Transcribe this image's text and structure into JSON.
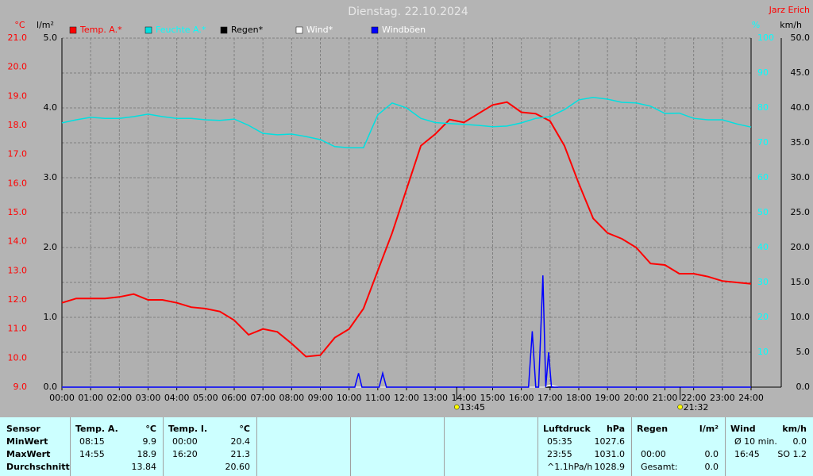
{
  "chart_data": {
    "type": "line",
    "title": "Dienstag. 22.10.2024",
    "author": "Jarz Erich",
    "xlim": [
      0,
      24
    ],
    "xticks": [
      {
        "value": 0,
        "label": "00:00"
      },
      {
        "value": 1,
        "label": "01:00"
      },
      {
        "value": 2,
        "label": "02:00"
      },
      {
        "value": 3,
        "label": "03:00"
      },
      {
        "value": 4,
        "label": "04:00"
      },
      {
        "value": 5,
        "label": "05:00"
      },
      {
        "value": 6,
        "label": "06:00"
      },
      {
        "value": 7,
        "label": "07:00"
      },
      {
        "value": 8,
        "label": "08:00"
      },
      {
        "value": 9,
        "label": "09:00"
      },
      {
        "value": 10,
        "label": "10:00"
      },
      {
        "value": 11,
        "label": "11:00"
      },
      {
        "value": 12,
        "label": "12:00"
      },
      {
        "value": 13,
        "label": "13:00"
      },
      {
        "value": 14,
        "label": "14:00"
      },
      {
        "value": 15,
        "label": "15:00"
      },
      {
        "value": 16,
        "label": "16:00"
      },
      {
        "value": 17,
        "label": "17:00"
      },
      {
        "value": 18,
        "label": "18:00"
      },
      {
        "value": 19,
        "label": "19:00"
      },
      {
        "value": 20,
        "label": "20:00"
      },
      {
        "value": 21,
        "label": "21:00"
      },
      {
        "value": 22,
        "label": "22:00"
      },
      {
        "value": 23,
        "label": "23:00"
      },
      {
        "value": 24,
        "label": "24:00"
      }
    ],
    "axes": [
      {
        "label": "°C",
        "color": "#ff0000",
        "lim": [
          9,
          21
        ],
        "ticks": [
          {
            "value": 9,
            "label": "9.0"
          },
          {
            "value": 10,
            "label": "10.0"
          },
          {
            "value": 11,
            "label": "11.0"
          },
          {
            "value": 12,
            "label": "12.0"
          },
          {
            "value": 13,
            "label": "13.0"
          },
          {
            "value": 14,
            "label": "14.0"
          },
          {
            "value": 15,
            "label": "15.0"
          },
          {
            "value": 16,
            "label": "16.0"
          },
          {
            "value": 17,
            "label": "17.0"
          },
          {
            "value": 18,
            "label": "18.0"
          },
          {
            "value": 19,
            "label": "19.0"
          },
          {
            "value": 20,
            "label": "20.0"
          },
          {
            "value": 21,
            "label": "21.0"
          }
        ]
      },
      {
        "label": "l/m²",
        "color": "#000000",
        "lim": [
          0,
          5
        ],
        "ticks": [
          {
            "value": 0,
            "label": "0.0"
          },
          {
            "value": 1,
            "label": "1.0"
          },
          {
            "value": 2,
            "label": "2.0"
          },
          {
            "value": 3,
            "label": "3.0"
          },
          {
            "value": 4,
            "label": "4.0"
          },
          {
            "value": 5,
            "label": "5.0"
          }
        ]
      },
      {
        "label": "%",
        "color": "#00ffff",
        "lim": [
          0,
          100
        ],
        "grid": true,
        "ticks": [
          10,
          20,
          30,
          40,
          50,
          60,
          70,
          80,
          90,
          100
        ]
      },
      {
        "label": "km/h",
        "color": "#000000",
        "lim": [
          0,
          50
        ],
        "ticks": [
          {
            "value": 0,
            "label": "0.0"
          },
          {
            "value": 5,
            "label": "5.0"
          },
          {
            "value": 10,
            "label": "10.0"
          },
          {
            "value": 15,
            "label": "15.0"
          },
          {
            "value": 20,
            "label": "20.0"
          },
          {
            "value": 25,
            "label": "25.0"
          },
          {
            "value": 30,
            "label": "30.0"
          },
          {
            "value": 35,
            "label": "35.0"
          },
          {
            "value": 40,
            "label": "40.0"
          },
          {
            "value": 45,
            "label": "45.0"
          },
          {
            "value": 50,
            "label": "50.0"
          }
        ]
      }
    ],
    "grid": true,
    "series": [
      {
        "name": "Temp. A.*",
        "color": "#ff0000",
        "label_color": "#ff0000",
        "axis": 0,
        "x": [
          0,
          0.5,
          1,
          1.5,
          2,
          2.5,
          3,
          3.5,
          4,
          4.5,
          5,
          5.5,
          6,
          6.5,
          7,
          7.5,
          8,
          8.5,
          9,
          9.5,
          10,
          10.5,
          11,
          11.5,
          12,
          12.5,
          13,
          13.5,
          14,
          14.5,
          15,
          15.5,
          16,
          16.5,
          17,
          17.5,
          18,
          18.5,
          19,
          19.5,
          20,
          20.5,
          21,
          21.5,
          22,
          22.5,
          23,
          23.5,
          24
        ],
        "values": [
          11.9,
          12.05,
          12.05,
          12.05,
          12.1,
          12.2,
          12.0,
          12.0,
          11.9,
          11.75,
          11.7,
          11.6,
          11.3,
          10.8,
          11.0,
          10.9,
          10.5,
          10.05,
          10.1,
          10.7,
          11.0,
          11.7,
          13.0,
          14.3,
          15.8,
          17.3,
          17.7,
          18.2,
          18.1,
          18.4,
          18.7,
          18.8,
          18.45,
          18.4,
          18.15,
          17.3,
          16.0,
          14.8,
          14.3,
          14.1,
          13.8,
          13.25,
          13.2,
          12.9,
          12.9,
          12.8,
          12.65,
          12.6,
          12.55
        ]
      },
      {
        "name": "Feuchte A.*",
        "color": "#00e0e0",
        "label_color": "#00ffff",
        "axis": 2,
        "x": [
          0,
          0.5,
          1,
          1.5,
          2,
          2.5,
          3,
          3.5,
          4,
          4.5,
          5,
          5.5,
          6,
          6.5,
          7,
          7.5,
          8,
          8.5,
          9,
          9.5,
          10,
          10.5,
          11,
          11.5,
          12,
          12.5,
          13,
          13.5,
          14,
          14.5,
          15,
          15.5,
          16,
          16.5,
          17,
          17.5,
          18,
          18.5,
          19,
          19.5,
          20,
          20.5,
          21,
          21.5,
          22,
          22.5,
          23,
          23.5,
          24
        ],
        "values": [
          75.7,
          76.6,
          77.3,
          77.0,
          77.0,
          77.5,
          78.2,
          77.5,
          77.0,
          77.0,
          76.6,
          76.4,
          76.8,
          75.0,
          72.7,
          72.3,
          72.5,
          71.8,
          70.9,
          68.9,
          68.6,
          68.6,
          78.0,
          81.4,
          80.0,
          77.0,
          75.8,
          75.5,
          75.3,
          75.0,
          74.6,
          74.8,
          75.7,
          77.0,
          77.5,
          79.5,
          82.3,
          83.0,
          82.5,
          81.6,
          81.4,
          80.5,
          78.4,
          78.5,
          77.0,
          76.6,
          76.6,
          75.4,
          74.5
        ]
      },
      {
        "name": "Regen*",
        "color": "#000000",
        "label_color": "#000000",
        "axis": 1,
        "x": [
          0,
          24
        ],
        "values": [
          0,
          0
        ]
      },
      {
        "name": "Wind*",
        "color": "#ffffff",
        "label_color": "#ffffff",
        "axis": 3,
        "x": [
          0,
          16.8,
          17.0,
          17.3,
          24
        ],
        "values": [
          0,
          0,
          0.3,
          0,
          0
        ]
      },
      {
        "name": "Windböen",
        "color": "#0000ff",
        "label_color": "#ffffff",
        "axis": 3,
        "x": [
          0,
          10.2,
          10.33,
          10.45,
          11.05,
          11.17,
          11.3,
          16.25,
          16.38,
          16.5,
          16.6,
          16.75,
          16.85,
          16.95,
          17.05,
          17.15,
          24
        ],
        "values": [
          0,
          0,
          2,
          0,
          0,
          2,
          0,
          0,
          8,
          0,
          0,
          16,
          0,
          5,
          0,
          0,
          0
        ]
      }
    ],
    "annotations": [
      {
        "x": 13.75,
        "label": "13:45"
      },
      {
        "x": 21.53,
        "label": "21:32"
      }
    ]
  },
  "table": {
    "label_header": "Sensor",
    "row_labels": [
      "MinWert",
      "MaxWert",
      "Durchschnitt"
    ],
    "groups": [
      {
        "name": "Temp. A.",
        "unit": "°C",
        "rows": [
          [
            "08:15",
            "9.9"
          ],
          [
            "14:55",
            "18.9"
          ],
          [
            null,
            "13.84"
          ]
        ]
      },
      {
        "name": "Temp. I.",
        "unit": "°C",
        "rows": [
          [
            "00:00",
            "20.4"
          ],
          [
            "16:20",
            "21.3"
          ],
          [
            null,
            "20.60"
          ]
        ]
      },
      null,
      null,
      null,
      {
        "name": "Luftdruck",
        "unit": "hPa",
        "rows": [
          [
            "05:35",
            "1027.6"
          ],
          [
            "23:55",
            "1031.0"
          ],
          [
            "^1.1hPa/h",
            "1028.9"
          ]
        ]
      },
      {
        "name": "Regen",
        "unit": "l/m²",
        "rows": [
          [
            null,
            null
          ],
          [
            "00:00",
            "0.0"
          ],
          [
            "Gesamt:",
            "0.0"
          ]
        ]
      },
      {
        "name": "Wind",
        "unit": "km/h",
        "rows": [
          [
            "Ø 10 min.",
            "0.0"
          ],
          [
            "16:45",
            "SO 1.2"
          ],
          [
            null,
            null
          ]
        ]
      }
    ]
  }
}
